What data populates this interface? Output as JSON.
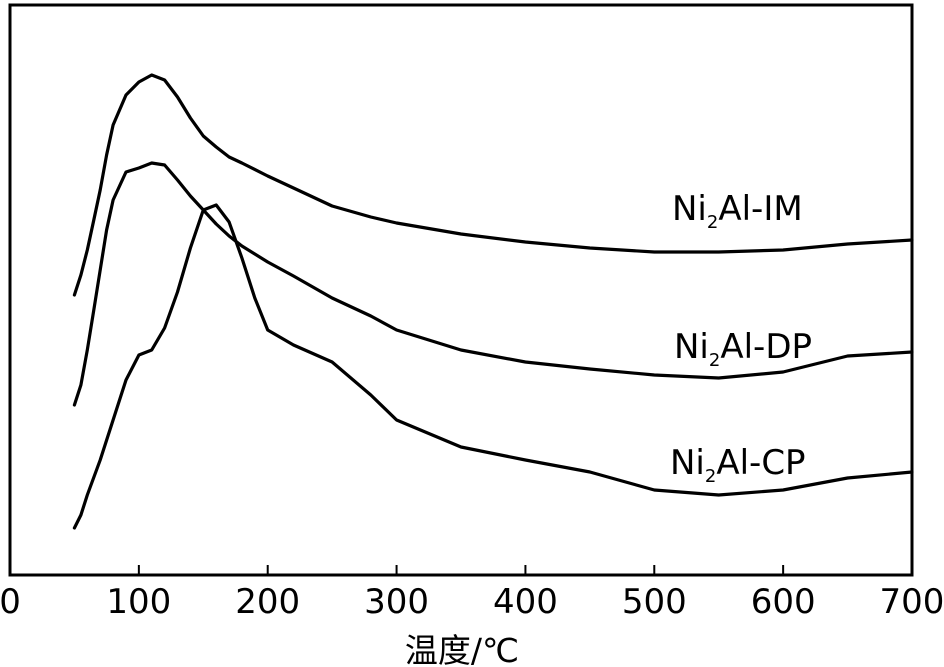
{
  "chart_data": {
    "type": "line",
    "title": "",
    "xlabel": "温度/℃",
    "ylabel": "",
    "xlim": [
      0,
      700
    ],
    "xticks": [
      0,
      100,
      200,
      300,
      400,
      500,
      600,
      700
    ],
    "grid": false,
    "legend": "none",
    "series": [
      {
        "name": "Ni2Al-IM",
        "label_main": "Ni",
        "label_sub": "2",
        "label_rest": "Al-IM",
        "color": "#000000",
        "points": [
          [
            50,
            295
          ],
          [
            55,
            275
          ],
          [
            60,
            250
          ],
          [
            65,
            220
          ],
          [
            70,
            190
          ],
          [
            75,
            155
          ],
          [
            80,
            125
          ],
          [
            90,
            95
          ],
          [
            100,
            82
          ],
          [
            110,
            75
          ],
          [
            120,
            80
          ],
          [
            130,
            97
          ],
          [
            140,
            118
          ],
          [
            150,
            136
          ],
          [
            160,
            147
          ],
          [
            170,
            157
          ],
          [
            180,
            163
          ],
          [
            200,
            176
          ],
          [
            220,
            188
          ],
          [
            250,
            206
          ],
          [
            280,
            217
          ],
          [
            300,
            223
          ],
          [
            350,
            234
          ],
          [
            400,
            242
          ],
          [
            450,
            248
          ],
          [
            500,
            252
          ],
          [
            550,
            252
          ],
          [
            600,
            250
          ],
          [
            650,
            244
          ],
          [
            700,
            240
          ]
        ]
      },
      {
        "name": "Ni2Al-DP",
        "label_main": "Ni",
        "label_sub": "2",
        "label_rest": "Al-DP",
        "color": "#000000",
        "points": [
          [
            50,
            405
          ],
          [
            55,
            385
          ],
          [
            60,
            350
          ],
          [
            65,
            310
          ],
          [
            70,
            270
          ],
          [
            75,
            230
          ],
          [
            80,
            200
          ],
          [
            90,
            172
          ],
          [
            100,
            168
          ],
          [
            110,
            163
          ],
          [
            120,
            165
          ],
          [
            130,
            180
          ],
          [
            140,
            196
          ],
          [
            150,
            210
          ],
          [
            160,
            224
          ],
          [
            170,
            236
          ],
          [
            180,
            246
          ],
          [
            200,
            262
          ],
          [
            220,
            276
          ],
          [
            250,
            298
          ],
          [
            280,
            316
          ],
          [
            300,
            330
          ],
          [
            350,
            350
          ],
          [
            400,
            362
          ],
          [
            450,
            369
          ],
          [
            500,
            375
          ],
          [
            550,
            378
          ],
          [
            600,
            372
          ],
          [
            650,
            356
          ],
          [
            700,
            352
          ]
        ]
      },
      {
        "name": "Ni2Al-CP",
        "label_main": "Ni",
        "label_sub": "2",
        "label_rest": "Al-CP",
        "color": "#000000",
        "points": [
          [
            50,
            528
          ],
          [
            55,
            515
          ],
          [
            60,
            495
          ],
          [
            70,
            460
          ],
          [
            80,
            420
          ],
          [
            90,
            380
          ],
          [
            100,
            355
          ],
          [
            110,
            350
          ],
          [
            120,
            328
          ],
          [
            130,
            292
          ],
          [
            140,
            248
          ],
          [
            150,
            210
          ],
          [
            160,
            205
          ],
          [
            170,
            222
          ],
          [
            180,
            258
          ],
          [
            190,
            298
          ],
          [
            200,
            330
          ],
          [
            220,
            345
          ],
          [
            250,
            362
          ],
          [
            280,
            395
          ],
          [
            300,
            420
          ],
          [
            350,
            447
          ],
          [
            400,
            460
          ],
          [
            450,
            472
          ],
          [
            500,
            490
          ],
          [
            550,
            495
          ],
          [
            600,
            490
          ],
          [
            650,
            478
          ],
          [
            700,
            472
          ]
        ]
      }
    ]
  }
}
